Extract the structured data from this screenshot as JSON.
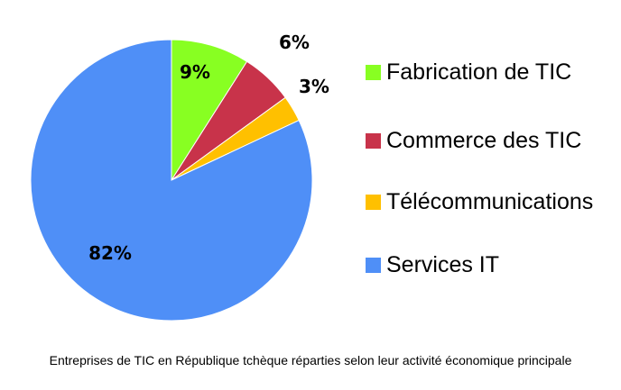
{
  "chart_data": {
    "type": "pie",
    "title": "",
    "caption": "Entreprises de TIC en République tchèque réparties selon leur activité économique principale",
    "legend_position": "right",
    "slices": [
      {
        "name": "Fabrication de TIC",
        "value": 9,
        "label": "9%",
        "color": "#88ff22"
      },
      {
        "name": "Commerce des TIC",
        "value": 6,
        "label": "6%",
        "color": "#c8334a"
      },
      {
        "name": "Télécommunications",
        "value": 3,
        "label": "3%",
        "color": "#ffc000"
      },
      {
        "name": "Services IT",
        "value": 82,
        "label": "82%",
        "color": "#4f8ff7"
      }
    ]
  }
}
